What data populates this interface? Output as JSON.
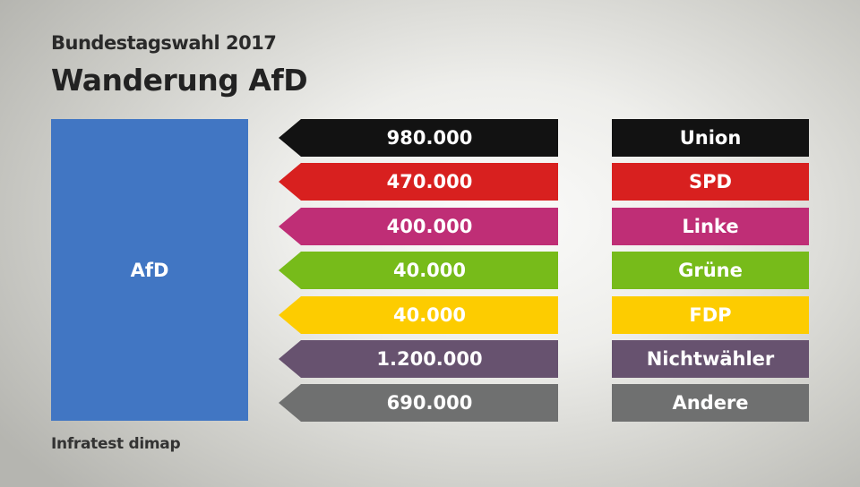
{
  "header": {
    "subtitle": "Bundestagswahl 2017",
    "title": "Wanderung AfD"
  },
  "target": {
    "label": "AfD",
    "color": "#4176c3"
  },
  "flows": [
    {
      "value": "980.000",
      "party": "Union",
      "color": "#121212"
    },
    {
      "value": "470.000",
      "party": "SPD",
      "color": "#d8201f"
    },
    {
      "value": "400.000",
      "party": "Linke",
      "color": "#bf2e76"
    },
    {
      "value": "40.000",
      "party": "Grüne",
      "color": "#77bb1a"
    },
    {
      "value": "40.000",
      "party": "FDP",
      "color": "#fdcc00"
    },
    {
      "value": "1.200.000",
      "party": "Nichtwähler",
      "color": "#67526f"
    },
    {
      "value": "690.000",
      "party": "Andere",
      "color": "#6f7070"
    }
  ],
  "footer": {
    "source": "Infratest dimap"
  }
}
